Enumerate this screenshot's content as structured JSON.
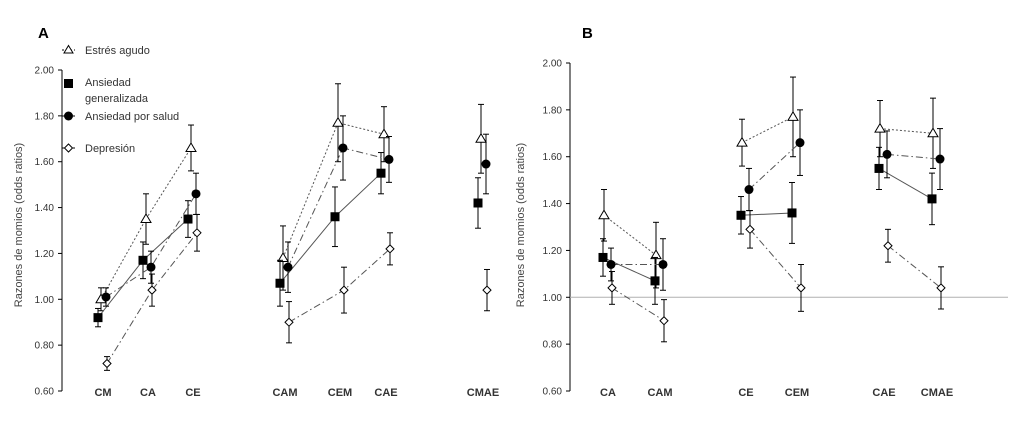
{
  "chart_data": [
    {
      "panel": "A",
      "type": "scatter",
      "ylabel": "Razones de momios (odds ratios)",
      "ylim": [
        0.6,
        2.0
      ],
      "yticks": [
        "0.60",
        "0.80",
        "1.00",
        "1.20",
        "1.40",
        "1.60",
        "1.80",
        "2.00"
      ],
      "categories": [
        "CM",
        "CA",
        "CE",
        "CAM",
        "CEM",
        "CAE",
        "CMAE"
      ],
      "legend": [
        "Estrés agudo",
        "Ansiedad generalizada",
        "Ansiedad por salud",
        "Depresión"
      ],
      "legend_position": "top-left",
      "series": [
        {
          "name": "Estrés agudo",
          "marker": "open-triangle",
          "line": "dotted",
          "values": [
            1.0,
            1.35,
            1.66,
            1.18,
            1.77,
            1.72,
            1.7
          ],
          "err": [
            0.05,
            0.11,
            0.1,
            0.14,
            0.17,
            0.12,
            0.15
          ]
        },
        {
          "name": "Ansiedad generalizada",
          "marker": "filled-square",
          "line": "solid",
          "values": [
            0.92,
            1.17,
            1.35,
            1.07,
            1.36,
            1.55,
            1.42
          ],
          "err": [
            0.04,
            0.08,
            0.08,
            0.1,
            0.13,
            0.09,
            0.11
          ]
        },
        {
          "name": "Ansiedad por salud",
          "marker": "filled-circle",
          "line": "dash-dot",
          "values": [
            1.01,
            1.14,
            1.46,
            1.14,
            1.66,
            1.61,
            1.59
          ],
          "err": [
            0.04,
            0.07,
            0.09,
            0.11,
            0.14,
            0.1,
            0.13
          ]
        },
        {
          "name": "Depresión",
          "marker": "open-diamond",
          "line": "dash-dot",
          "values": [
            0.72,
            1.04,
            1.29,
            0.9,
            1.04,
            1.22,
            1.04
          ],
          "err": [
            0.03,
            0.07,
            0.08,
            0.09,
            0.1,
            0.07,
            0.09
          ]
        }
      ],
      "connections": [
        [
          0,
          1,
          2
        ],
        [
          3,
          4,
          5
        ]
      ]
    },
    {
      "panel": "B",
      "type": "scatter",
      "ylabel": "Razones de momios (odds ratios)",
      "ylim": [
        0.6,
        2.0
      ],
      "yticks": [
        "0.60",
        "0.80",
        "1.00",
        "1.20",
        "1.40",
        "1.60",
        "1.80",
        "2.00"
      ],
      "reference_line": 1.0,
      "categories": [
        "CA",
        "CAM",
        "CE",
        "CEM",
        "CAE",
        "CMAE"
      ],
      "series": [
        {
          "name": "Estrés agudo",
          "marker": "open-triangle",
          "line": "dotted",
          "values": [
            1.35,
            1.18,
            1.66,
            1.77,
            1.72,
            1.7
          ],
          "err": [
            0.11,
            0.14,
            0.1,
            0.17,
            0.12,
            0.15
          ]
        },
        {
          "name": "Ansiedad generalizada",
          "marker": "filled-square",
          "line": "solid",
          "values": [
            1.17,
            1.07,
            1.35,
            1.36,
            1.55,
            1.42
          ],
          "err": [
            0.08,
            0.1,
            0.08,
            0.13,
            0.09,
            0.11
          ]
        },
        {
          "name": "Ansiedad por salud",
          "marker": "filled-circle",
          "line": "dash-dot",
          "values": [
            1.14,
            1.14,
            1.46,
            1.66,
            1.61,
            1.59
          ],
          "err": [
            0.07,
            0.11,
            0.09,
            0.14,
            0.1,
            0.13
          ]
        },
        {
          "name": "Depresión",
          "marker": "open-diamond",
          "line": "dash-dot",
          "values": [
            1.04,
            0.9,
            1.29,
            1.04,
            1.22,
            1.04
          ],
          "err": [
            0.07,
            0.09,
            0.08,
            0.1,
            0.07,
            0.09
          ]
        }
      ],
      "connections": [
        [
          0,
          1
        ],
        [
          2,
          3
        ],
        [
          4,
          5
        ]
      ]
    }
  ],
  "legend_lines": {
    "estres": "Estrés agudo",
    "ansiedad_gen_1": "Ansiedad",
    "ansiedad_gen_2": "generalizada",
    "ansiedad_salud": "Ansiedad por salud",
    "depresion": "Depresión"
  },
  "colors": {
    "axis": "#000000",
    "series": "#000000",
    "reference_line": "#b0b0b0",
    "error": "#000000"
  }
}
